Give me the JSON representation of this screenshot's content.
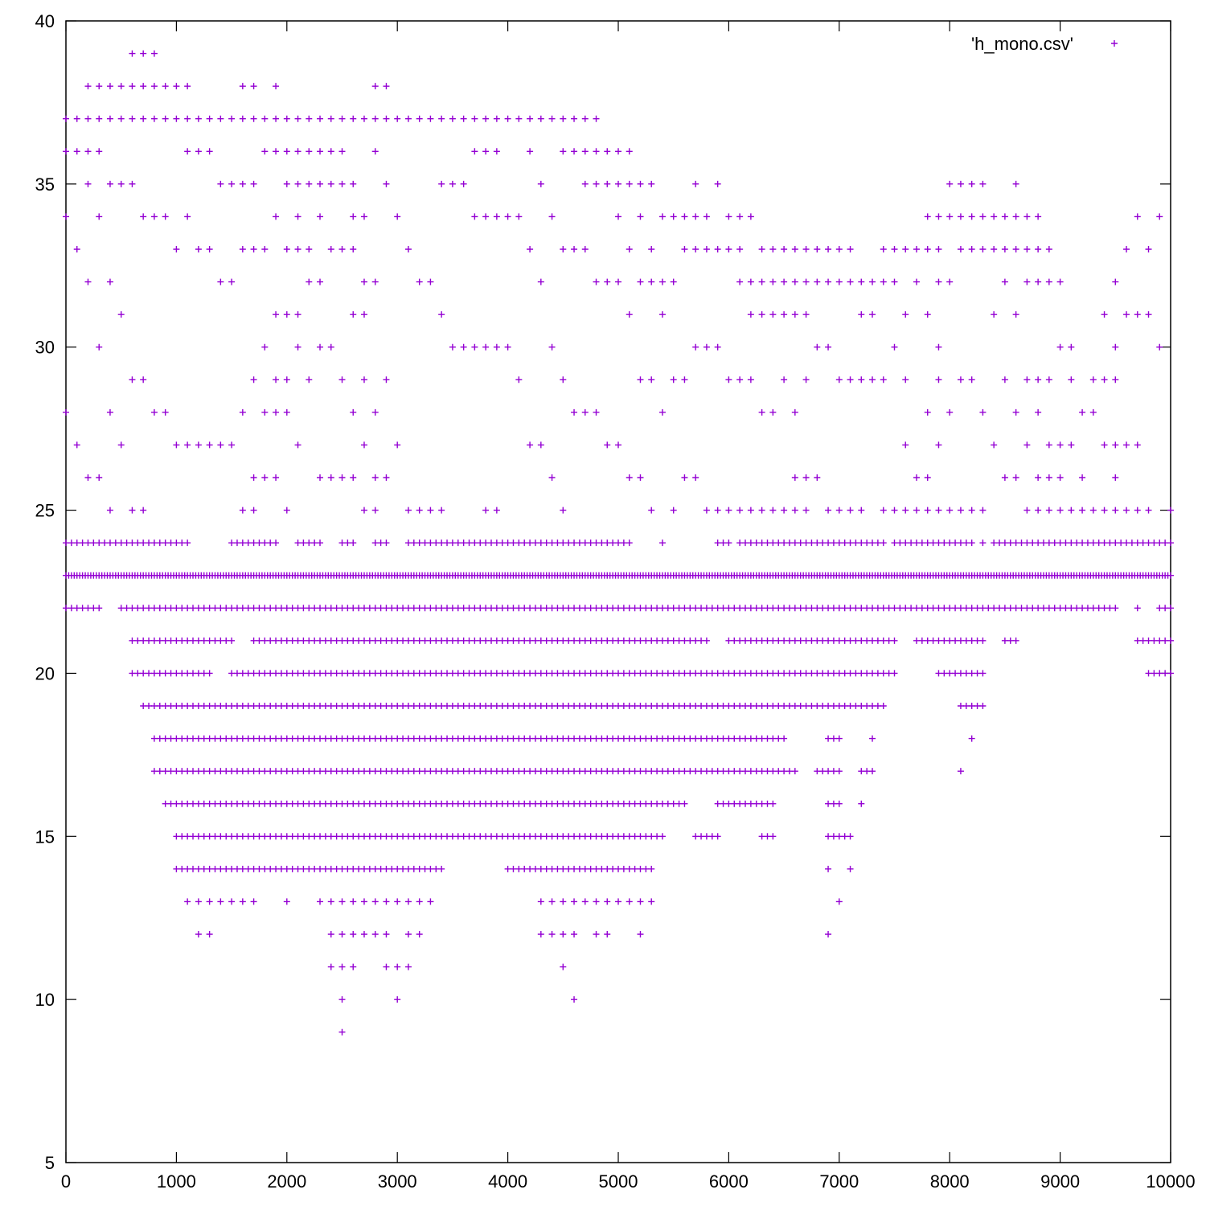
{
  "chart_data": {
    "type": "scatter",
    "title": "",
    "xlabel": "",
    "ylabel": "",
    "xlim": [
      0,
      10000
    ],
    "ylim": [
      5,
      40
    ],
    "xticks": [
      0,
      1000,
      2000,
      3000,
      4000,
      5000,
      6000,
      7000,
      8000,
      9000,
      10000
    ],
    "yticks": [
      5,
      10,
      15,
      20,
      25,
      30,
      35,
      40
    ],
    "grid": false,
    "legend_position": "top-right",
    "marker": "+",
    "color": "#9400d3",
    "series": [
      {
        "name": "'h_mono.csv'",
        "rows": [
          {
            "y": 39,
            "x": [
              600,
              700,
              800
            ]
          },
          {
            "y": 38,
            "x": [
              200,
              300,
              400,
              500,
              600,
              700,
              800,
              900,
              1000,
              1100,
              1600,
              1700,
              1900,
              2800,
              2900
            ]
          },
          {
            "y": 37,
            "x": [
              0,
              100,
              200,
              300,
              400,
              500,
              600,
              700,
              800,
              900,
              1000,
              1100,
              1200,
              1300,
              1400,
              1500,
              1600,
              1700,
              1800,
              1900,
              2000,
              2100,
              2200,
              2300,
              2400,
              2500,
              2600,
              2700,
              2800,
              2900,
              3000,
              3100,
              3200,
              3300,
              3400,
              3500,
              3600,
              3700,
              3800,
              3900,
              4000,
              4100,
              4200,
              4300,
              4400,
              4500,
              4600,
              4700,
              4800
            ]
          },
          {
            "y": 36,
            "x": [
              0,
              100,
              200,
              300,
              1100,
              1200,
              1300,
              1800,
              1900,
              2000,
              2100,
              2200,
              2300,
              2400,
              2500,
              2800,
              3700,
              3800,
              3900,
              4200,
              4500,
              4600,
              4700,
              4800,
              4900,
              5000,
              5100
            ]
          },
          {
            "y": 35,
            "x": [
              200,
              400,
              500,
              600,
              1400,
              1500,
              1600,
              1700,
              2000,
              2100,
              2200,
              2300,
              2400,
              2500,
              2600,
              2900,
              3400,
              3500,
              3600,
              4300,
              4700,
              4800,
              4900,
              5000,
              5100,
              5200,
              5300,
              5700,
              5900,
              8000,
              8100,
              8200,
              8300,
              8600
            ]
          },
          {
            "y": 34,
            "x": [
              0,
              300,
              700,
              800,
              900,
              1100,
              1900,
              2100,
              2300,
              2600,
              2700,
              3000,
              3700,
              3800,
              3900,
              4000,
              4100,
              4400,
              5000,
              5200,
              5400,
              5500,
              5600,
              5700,
              5800,
              6000,
              6100,
              6200,
              7800,
              7900,
              8000,
              8100,
              8200,
              8300,
              8400,
              8500,
              8600,
              8700,
              8800,
              9700,
              9900
            ]
          },
          {
            "y": 33,
            "x": [
              100,
              1000,
              1200,
              1300,
              1600,
              1700,
              1800,
              2000,
              2100,
              2200,
              2400,
              2500,
              2600,
              3100,
              4200,
              4500,
              4600,
              4700,
              5100,
              5300,
              5600,
              5700,
              5800,
              5900,
              6000,
              6100,
              6300,
              6400,
              6500,
              6600,
              6700,
              6800,
              6900,
              7000,
              7100,
              7400,
              7500,
              7600,
              7700,
              7800,
              7900,
              8100,
              8200,
              8300,
              8400,
              8500,
              8600,
              8700,
              8800,
              8900,
              9600,
              9800
            ]
          },
          {
            "y": 32,
            "x": [
              200,
              400,
              1400,
              1500,
              2200,
              2300,
              2700,
              2800,
              3200,
              3300,
              4300,
              4800,
              4900,
              5000,
              5200,
              5300,
              5400,
              5500,
              6100,
              6200,
              6300,
              6400,
              6500,
              6600,
              6700,
              6800,
              6900,
              7000,
              7100,
              7200,
              7300,
              7400,
              7500,
              7700,
              7900,
              8000,
              8500,
              8700,
              8800,
              8900,
              9000,
              9500
            ]
          },
          {
            "y": 31,
            "x": [
              500,
              1900,
              2000,
              2100,
              2600,
              2700,
              3400,
              5100,
              5400,
              6200,
              6300,
              6400,
              6500,
              6600,
              6700,
              7200,
              7300,
              7600,
              7800,
              8400,
              8600,
              9400,
              9600,
              9700,
              9800
            ]
          },
          {
            "y": 30,
            "x": [
              300,
              1800,
              2100,
              2300,
              2400,
              3500,
              3600,
              3700,
              3800,
              3900,
              4000,
              4400,
              5700,
              5800,
              5900,
              6800,
              6900,
              7500,
              7900,
              9000,
              9100,
              9500,
              9900
            ]
          },
          {
            "y": 29,
            "x": [
              600,
              700,
              1700,
              1900,
              2000,
              2200,
              2500,
              2700,
              2900,
              4100,
              4500,
              5200,
              5300,
              5500,
              5600,
              6000,
              6100,
              6200,
              6500,
              6700,
              7000,
              7100,
              7200,
              7300,
              7400,
              7600,
              7900,
              8100,
              8200,
              8500,
              8700,
              8800,
              8900,
              9100,
              9300,
              9400,
              9500
            ]
          },
          {
            "y": 28,
            "x": [
              0,
              400,
              800,
              900,
              1600,
              1800,
              1900,
              2000,
              2600,
              2800,
              4600,
              4700,
              4800,
              5400,
              6300,
              6400,
              6600,
              7800,
              8000,
              8300,
              8600,
              8800,
              9200,
              9300
            ]
          },
          {
            "y": 27,
            "x": [
              100,
              500,
              1000,
              1100,
              1200,
              1300,
              1400,
              1500,
              2100,
              2700,
              3000,
              4200,
              4300,
              4900,
              5000,
              7600,
              7900,
              8400,
              8700,
              8900,
              9000,
              9100,
              9400,
              9500,
              9600,
              9700
            ]
          },
          {
            "y": 26,
            "x": [
              200,
              300,
              1700,
              1800,
              1900,
              2300,
              2400,
              2500,
              2600,
              2800,
              2900,
              4400,
              5100,
              5200,
              5600,
              5700,
              6600,
              6700,
              6800,
              7700,
              7800,
              8500,
              8600,
              8800,
              8900,
              9000,
              9200,
              9500
            ]
          },
          {
            "y": 25,
            "x": [
              400,
              600,
              700,
              1600,
              1700,
              2000,
              2700,
              2800,
              3100,
              3200,
              3300,
              3400,
              3800,
              3900,
              4500,
              5300,
              5500,
              5800,
              5900,
              6000,
              6100,
              6200,
              6300,
              6400,
              6500,
              6600,
              6700,
              6900,
              7000,
              7100,
              7200,
              7400,
              7500,
              7600,
              7700,
              7800,
              7900,
              8000,
              8100,
              8200,
              8300,
              8700,
              8800,
              8900,
              9000,
              9100,
              9200,
              9300,
              9400,
              9500,
              9600,
              9700,
              9800,
              10000
            ]
          },
          {
            "y": 24,
            "step": 50,
            "segments": [
              [
                0,
                1100
              ],
              [
                1500,
                1900
              ],
              [
                2100,
                2300
              ],
              [
                2500,
                2600
              ],
              [
                2800,
                2900
              ],
              [
                3100,
                5100
              ],
              [
                5400,
                5400
              ],
              [
                5900,
                6000
              ],
              [
                6100,
                7400
              ],
              [
                7500,
                8200
              ],
              [
                8300,
                8300
              ],
              [
                8400,
                10000
              ]
            ]
          },
          {
            "y": 23,
            "step": 25,
            "segments": [
              [
                0,
                10000
              ]
            ]
          },
          {
            "y": 22,
            "step": 50,
            "segments": [
              [
                0,
                300
              ],
              [
                500,
                9500
              ],
              [
                9700,
                9700
              ],
              [
                9900,
                10000
              ]
            ]
          },
          {
            "y": 21,
            "step": 50,
            "segments": [
              [
                600,
                1500
              ],
              [
                1700,
                5800
              ],
              [
                6000,
                7500
              ],
              [
                7700,
                8300
              ],
              [
                8500,
                8600
              ],
              [
                9700,
                10000
              ]
            ]
          },
          {
            "y": 20,
            "step": 50,
            "segments": [
              [
                600,
                1300
              ],
              [
                1500,
                7500
              ],
              [
                7900,
                8300
              ],
              [
                9800,
                10000
              ]
            ]
          },
          {
            "y": 19,
            "step": 50,
            "segments": [
              [
                700,
                7400
              ],
              [
                8100,
                8300
              ]
            ]
          },
          {
            "y": 18,
            "step": 50,
            "segments": [
              [
                800,
                6500
              ],
              [
                6900,
                7000
              ],
              [
                7300,
                7300
              ],
              [
                8200,
                8200
              ]
            ]
          },
          {
            "y": 17,
            "step": 50,
            "segments": [
              [
                800,
                6600
              ],
              [
                6800,
                7000
              ],
              [
                7200,
                7300
              ],
              [
                8100,
                8100
              ]
            ]
          },
          {
            "y": 16,
            "step": 50,
            "segments": [
              [
                900,
                5600
              ],
              [
                5900,
                6400
              ],
              [
                6900,
                7000
              ],
              [
                7200,
                7200
              ]
            ]
          },
          {
            "y": 15,
            "step": 50,
            "segments": [
              [
                1000,
                5400
              ],
              [
                5700,
                5900
              ],
              [
                6300,
                6400
              ],
              [
                6900,
                7100
              ]
            ]
          },
          {
            "y": 14,
            "step": 50,
            "segments": [
              [
                1000,
                3400
              ],
              [
                4000,
                5300
              ],
              [
                6900,
                6900
              ],
              [
                7100,
                7100
              ]
            ]
          },
          {
            "y": 13,
            "x": [
              1100,
              1200,
              1300,
              1400,
              1500,
              1600,
              1700,
              2000,
              2300,
              2400,
              2500,
              2600,
              2700,
              2800,
              2900,
              3000,
              3100,
              3200,
              3300,
              4300,
              4400,
              4500,
              4600,
              4700,
              4800,
              4900,
              5000,
              5100,
              5200,
              5300,
              7000
            ]
          },
          {
            "y": 12,
            "x": [
              1200,
              1300,
              2400,
              2500,
              2600,
              2700,
              2800,
              2900,
              3100,
              3200,
              4300,
              4400,
              4500,
              4600,
              4800,
              4900,
              5200,
              6900
            ]
          },
          {
            "y": 11,
            "x": [
              2400,
              2500,
              2600,
              2900,
              3000,
              3100,
              4500
            ]
          },
          {
            "y": 10,
            "x": [
              2500,
              3000,
              4600
            ]
          },
          {
            "y": 9,
            "x": [
              2500
            ]
          }
        ]
      }
    ]
  }
}
